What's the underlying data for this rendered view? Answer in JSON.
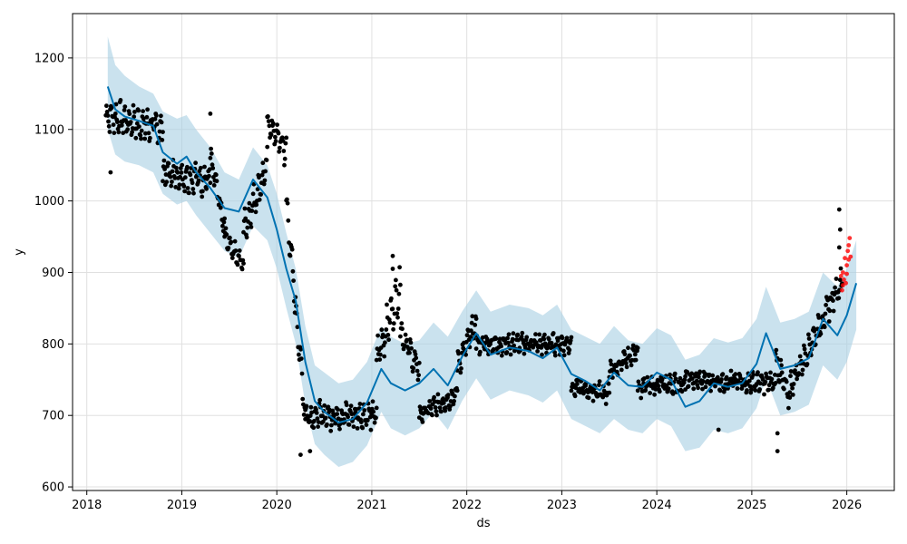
{
  "colors": {
    "actual_points": "#000000",
    "recent_points": "#ff0000",
    "forecast_line": "#0072B2",
    "uncertainty_band": "#a6cee3",
    "grid": "#e0e0e0",
    "axes": "#000000",
    "background": "#ffffff"
  },
  "chart_data": {
    "type": "scatter",
    "title": "",
    "xlabel": "ds",
    "ylabel": "y",
    "xlim": [
      2017.85,
      2026.5
    ],
    "ylim": [
      595,
      1262
    ],
    "grid": true,
    "x_ticks": [
      {
        "value": 2018,
        "label": "2018"
      },
      {
        "value": 2019,
        "label": "2019"
      },
      {
        "value": 2020,
        "label": "2020"
      },
      {
        "value": 2021,
        "label": "2021"
      },
      {
        "value": 2022,
        "label": "2022"
      },
      {
        "value": 2023,
        "label": "2023"
      },
      {
        "value": 2024,
        "label": "2024"
      },
      {
        "value": 2025,
        "label": "2025"
      },
      {
        "value": 2026,
        "label": "2026"
      }
    ],
    "y_ticks": [
      {
        "value": 600,
        "label": "600"
      },
      {
        "value": 700,
        "label": "700"
      },
      {
        "value": 800,
        "label": "800"
      },
      {
        "value": 900,
        "label": "900"
      },
      {
        "value": 1000,
        "label": "1000"
      },
      {
        "value": 1100,
        "label": "1100"
      },
      {
        "value": 1200,
        "label": "1200"
      }
    ],
    "forecast": {
      "x": [
        2018.22,
        2018.3,
        2018.4,
        2018.55,
        2018.7,
        2018.8,
        2018.95,
        2019.05,
        2019.15,
        2019.3,
        2019.45,
        2019.6,
        2019.75,
        2019.9,
        2020.0,
        2020.1,
        2020.2,
        2020.3,
        2020.4,
        2020.5,
        2020.65,
        2020.8,
        2020.95,
        2021.1,
        2021.2,
        2021.35,
        2021.5,
        2021.65,
        2021.8,
        2021.95,
        2022.1,
        2022.25,
        2022.45,
        2022.65,
        2022.8,
        2022.95,
        2023.1,
        2023.25,
        2023.4,
        2023.55,
        2023.7,
        2023.85,
        2024.0,
        2024.15,
        2024.3,
        2024.45,
        2024.6,
        2024.75,
        2024.9,
        2025.05,
        2025.15,
        2025.3,
        2025.45,
        2025.6,
        2025.75,
        2025.9,
        2026.0,
        2026.1
      ],
      "y": [
        1160,
        1128,
        1118,
        1112,
        1105,
        1068,
        1052,
        1062,
        1040,
        1018,
        990,
        985,
        1030,
        1005,
        960,
        905,
        860,
        775,
        720,
        705,
        690,
        695,
        718,
        765,
        745,
        735,
        745,
        765,
        742,
        782,
        815,
        785,
        795,
        790,
        780,
        795,
        758,
        748,
        735,
        760,
        742,
        740,
        760,
        750,
        712,
        720,
        745,
        740,
        745,
        772,
        815,
        765,
        770,
        780,
        835,
        812,
        840,
        885
      ],
      "upper": [
        1230,
        1190,
        1175,
        1160,
        1150,
        1125,
        1115,
        1120,
        1100,
        1075,
        1040,
        1030,
        1075,
        1050,
        1010,
        955,
        905,
        825,
        770,
        760,
        745,
        750,
        775,
        825,
        810,
        800,
        805,
        830,
        810,
        845,
        875,
        845,
        855,
        850,
        840,
        855,
        820,
        810,
        800,
        825,
        805,
        800,
        822,
        812,
        778,
        785,
        808,
        802,
        808,
        835,
        880,
        830,
        835,
        845,
        900,
        880,
        905,
        945
      ],
      "lower": [
        1100,
        1065,
        1055,
        1050,
        1040,
        1010,
        995,
        1000,
        980,
        955,
        930,
        920,
        965,
        945,
        905,
        850,
        800,
        715,
        660,
        645,
        628,
        635,
        658,
        705,
        682,
        672,
        682,
        705,
        680,
        720,
        752,
        722,
        735,
        728,
        718,
        735,
        695,
        685,
        675,
        695,
        680,
        675,
        695,
        685,
        650,
        655,
        680,
        675,
        682,
        710,
        752,
        700,
        705,
        715,
        770,
        750,
        775,
        820
      ]
    },
    "actual_segments": [
      {
        "x0": 2018.2,
        "x1": 2018.8,
        "y0": 1120,
        "y1": 1100,
        "amp": 25
      },
      {
        "x0": 2018.8,
        "x1": 2019.3,
        "y0": 1040,
        "y1": 1030,
        "amp": 25
      },
      {
        "x0": 2019.3,
        "x1": 2019.45,
        "y0": 1060,
        "y1": 960,
        "amp": 20
      },
      {
        "x0": 2019.45,
        "x1": 2019.65,
        "y0": 950,
        "y1": 910,
        "amp": 15
      },
      {
        "x0": 2019.65,
        "x1": 2019.9,
        "y0": 960,
        "y1": 1050,
        "amp": 25
      },
      {
        "x0": 2019.9,
        "x1": 2020.1,
        "y0": 1110,
        "y1": 1070,
        "amp": 25
      },
      {
        "x0": 2020.1,
        "x1": 2020.3,
        "y0": 1000,
        "y1": 700,
        "amp": 25
      },
      {
        "x0": 2020.3,
        "x1": 2021.05,
        "y0": 700,
        "y1": 700,
        "amp": 20
      },
      {
        "x0": 2021.05,
        "x1": 2021.3,
        "y0": 780,
        "y1": 880,
        "amp": 30
      },
      {
        "x0": 2021.3,
        "x1": 2021.5,
        "y0": 820,
        "y1": 760,
        "amp": 20
      },
      {
        "x0": 2021.5,
        "x1": 2021.9,
        "y0": 700,
        "y1": 730,
        "amp": 15
      },
      {
        "x0": 2021.9,
        "x1": 2022.1,
        "y0": 770,
        "y1": 830,
        "amp": 20
      },
      {
        "x0": 2022.1,
        "x1": 2023.1,
        "y0": 800,
        "y1": 800,
        "amp": 15
      },
      {
        "x0": 2023.1,
        "x1": 2023.5,
        "y0": 740,
        "y1": 730,
        "amp": 15
      },
      {
        "x0": 2023.5,
        "x1": 2023.8,
        "y0": 760,
        "y1": 790,
        "amp": 15
      },
      {
        "x0": 2023.8,
        "x1": 2024.3,
        "y0": 740,
        "y1": 745,
        "amp": 15
      },
      {
        "x0": 2024.3,
        "x1": 2025.25,
        "y0": 750,
        "y1": 745,
        "amp": 15
      },
      {
        "x0": 2025.25,
        "x1": 2025.4,
        "y0": 780,
        "y1": 720,
        "amp": 20
      },
      {
        "x0": 2025.4,
        "x1": 2025.95,
        "y0": 740,
        "y1": 890,
        "amp": 20
      }
    ],
    "actual_outliers": [
      {
        "x": 2018.25,
        "y": 1040
      },
      {
        "x": 2019.3,
        "y": 1122
      },
      {
        "x": 2020.25,
        "y": 645
      },
      {
        "x": 2020.35,
        "y": 650
      },
      {
        "x": 2021.22,
        "y": 923
      },
      {
        "x": 2021.22,
        "y": 905
      },
      {
        "x": 2025.27,
        "y": 650
      },
      {
        "x": 2025.27,
        "y": 675
      },
      {
        "x": 2025.92,
        "y": 988
      },
      {
        "x": 2025.93,
        "y": 960
      },
      {
        "x": 2025.92,
        "y": 935
      },
      {
        "x": 2024.65,
        "y": 680
      }
    ],
    "recent_points": [
      {
        "x": 2025.94,
        "y": 895
      },
      {
        "x": 2025.95,
        "y": 875
      },
      {
        "x": 2025.96,
        "y": 900
      },
      {
        "x": 2025.97,
        "y": 890
      },
      {
        "x": 2025.98,
        "y": 920
      },
      {
        "x": 2025.99,
        "y": 885
      },
      {
        "x": 2026.0,
        "y": 910
      },
      {
        "x": 2026.01,
        "y": 930
      },
      {
        "x": 2026.02,
        "y": 918
      },
      {
        "x": 2026.03,
        "y": 948
      },
      {
        "x": 2026.04,
        "y": 922
      },
      {
        "x": 2025.96,
        "y": 882
      },
      {
        "x": 2026.0,
        "y": 898
      },
      {
        "x": 2026.02,
        "y": 938
      }
    ]
  }
}
